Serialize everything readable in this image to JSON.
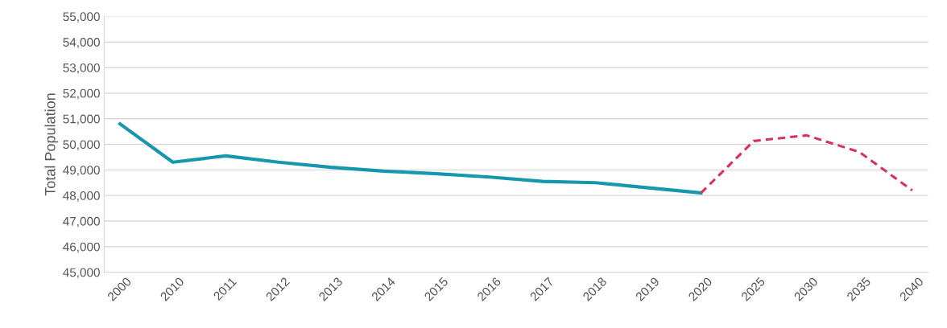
{
  "chart_data": {
    "type": "line",
    "ylabel": "Total Population",
    "categories": [
      "2000",
      "2010",
      "2011",
      "2012",
      "2013",
      "2014",
      "2015",
      "2016",
      "2017",
      "2018",
      "2019",
      "2020",
      "2025",
      "2030",
      "2035",
      "2040"
    ],
    "series": [
      {
        "color": "#1797ad",
        "line_style": "solid",
        "values": [
          50800,
          49300,
          49550,
          49300,
          49100,
          48950,
          48850,
          48720,
          48550,
          48500,
          48300,
          48100,
          null,
          null,
          null,
          null
        ]
      },
      {
        "color": "#d9325a",
        "line_style": "dashed",
        "values": [
          null,
          null,
          null,
          null,
          null,
          null,
          null,
          null,
          null,
          null,
          null,
          48100,
          50130,
          50350,
          49700,
          48200
        ]
      }
    ],
    "ylim": [
      45000,
      55000
    ],
    "yticks": [
      {
        "value": 45000,
        "label": "45,000"
      },
      {
        "value": 46000,
        "label": "46,000"
      },
      {
        "value": 47000,
        "label": "47,000"
      },
      {
        "value": 48000,
        "label": "48,000"
      },
      {
        "value": 49000,
        "label": "49,000"
      },
      {
        "value": 50000,
        "label": "50,000"
      },
      {
        "value": 51000,
        "label": "51,000"
      },
      {
        "value": 52000,
        "label": "52,000"
      },
      {
        "value": 53000,
        "label": "53,000"
      },
      {
        "value": 54000,
        "label": "54,000"
      },
      {
        "value": 55000,
        "label": "55,000"
      }
    ],
    "grid": "y",
    "marker": "none"
  }
}
